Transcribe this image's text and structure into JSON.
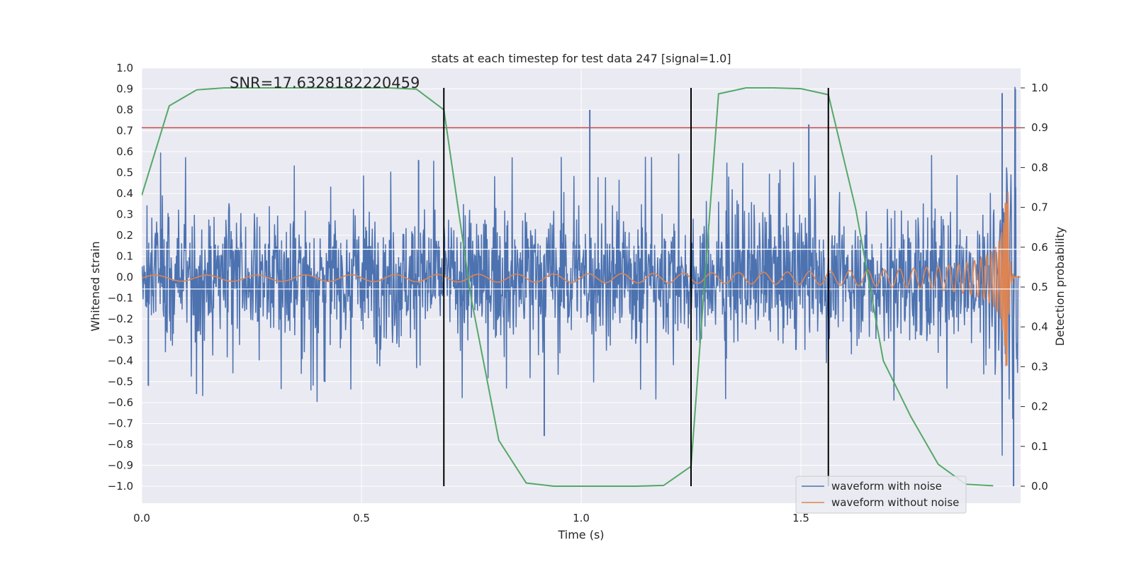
{
  "chart_data": {
    "type": "line",
    "title": "stats at each timestep for test data 247 [signal=1.0]",
    "xlabel": "Time (s)",
    "ylabel": "Whitened strain",
    "ylabel_right": "Detection probability",
    "annotation": "SNR=17.6328182220459",
    "xlim": [
      0.0,
      2.0
    ],
    "ylim": [
      -1.09,
      1.0
    ],
    "ylim_right": [
      -0.05,
      1.05
    ],
    "x_ticks": [
      "0.0",
      "0.5",
      "1.0",
      "1.5"
    ],
    "y_ticks": [
      "1.0",
      "0.9",
      "0.8",
      "0.7",
      "0.6",
      "0.5",
      "0.4",
      "0.3",
      "0.2",
      "0.1",
      "0.0",
      "−0.1",
      "−0.2",
      "−0.3",
      "−0.4",
      "−0.5",
      "−0.6",
      "−0.7",
      "−0.8",
      "−0.9",
      "−1.0"
    ],
    "y_right_ticks": [
      "1.0",
      "0.9",
      "0.8",
      "0.7",
      "0.6",
      "0.5",
      "0.4",
      "0.3",
      "0.2",
      "0.1",
      "0.0"
    ],
    "grid": true,
    "legend_position": "lower-right",
    "series": [
      {
        "name": "waveform with noise",
        "color": "#4c72b0",
        "axis": "left",
        "description_values": "noisy strain, amplitude roughly -0.5 to 0.5 with spikes up to 0.9 and down to -1.0"
      },
      {
        "name": "waveform without noise",
        "color": "#dd8452",
        "axis": "left",
        "description_values": "chirp signal growing in frequency and amplitude toward t=1.97"
      }
    ],
    "detection_probability": {
      "color": "#55a868",
      "axis": "right",
      "x": [
        0.0,
        0.0625,
        0.125,
        0.1875,
        0.25,
        0.3125,
        0.375,
        0.4375,
        0.5,
        0.5625,
        0.625,
        0.6875,
        0.75,
        0.8125,
        0.875,
        0.9375,
        1.0,
        1.0625,
        1.125,
        1.1875,
        1.25,
        1.3125,
        1.375,
        1.4375,
        1.5,
        1.5625,
        1.625,
        1.6875,
        1.75,
        1.8125,
        1.875,
        1.9375
      ],
      "y": [
        0.73,
        0.955,
        0.995,
        1.0,
        1.0,
        1.0,
        1.0,
        1.0,
        1.0,
        1.0,
        0.997,
        0.945,
        0.47,
        0.115,
        0.008,
        0.0,
        0.0,
        0.0,
        0.0,
        0.002,
        0.05,
        0.985,
        1.0,
        1.0,
        0.998,
        0.983,
        0.695,
        0.315,
        0.175,
        0.055,
        0.005,
        0.001
      ]
    },
    "threshold_line": {
      "color": "#c44e52",
      "axis": "right",
      "y": 0.9
    },
    "vertical_lines": {
      "color": "#000000",
      "x": [
        0.6875,
        1.25,
        1.5625
      ],
      "y_range_right": [
        0.0,
        1.0
      ]
    },
    "white_hlines_right": [
      0.595,
      0.495
    ]
  }
}
